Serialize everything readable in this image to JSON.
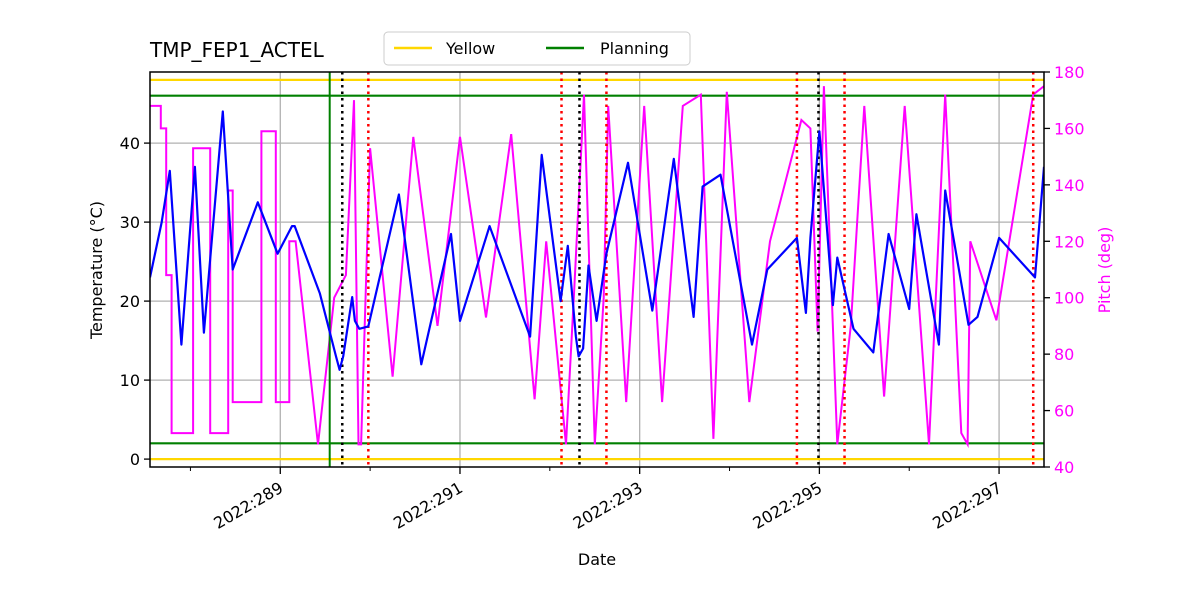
{
  "chart_data": {
    "type": "line",
    "title": "TMP_FEP1_ACTEL",
    "xlabel": "Date",
    "ylabel": "Temperature ($^\\circ$C)",
    "ylabel_display": "Temperature (°C)",
    "y2label": "Pitch (deg)",
    "xlim_days": [
      287.55,
      297.5
    ],
    "ylim": [
      -1,
      49
    ],
    "y2lim": [
      40,
      180
    ],
    "x_ticks": [
      {
        "day": 289,
        "label": "2022:289"
      },
      {
        "day": 291,
        "label": "2022:291"
      },
      {
        "day": 293,
        "label": "2022:293"
      },
      {
        "day": 295,
        "label": "2022:295"
      },
      {
        "day": 297,
        "label": "2022:297"
      }
    ],
    "x_minor_ticks": [
      288,
      290,
      292,
      294,
      296
    ],
    "y_ticks": [
      0,
      10,
      20,
      30,
      40
    ],
    "y2_ticks": [
      40,
      60,
      80,
      100,
      120,
      140,
      160,
      180
    ],
    "grid": true,
    "legend": {
      "position": "upper center (above axes)",
      "entries": [
        {
          "label": "Yellow",
          "color": "#FFD700"
        },
        {
          "label": "Planning",
          "color": "#008000"
        }
      ]
    },
    "limit_lines": [
      {
        "name": "Yellow high",
        "axis": "y",
        "value": 48,
        "color": "#FFD700"
      },
      {
        "name": "Planning high",
        "axis": "y",
        "value": 46,
        "color": "#008000"
      },
      {
        "name": "Planning low",
        "axis": "y",
        "value": 2,
        "color": "#008000"
      },
      {
        "name": "Yellow low",
        "axis": "y",
        "value": 0,
        "color": "#FFD700"
      }
    ],
    "vertical_lines": [
      {
        "day": 289.55,
        "style": "solid",
        "color": "#008000"
      },
      {
        "day": 289.69,
        "style": "dotted",
        "color": "#000000"
      },
      {
        "day": 289.98,
        "style": "dotted",
        "color": "#FF0000"
      },
      {
        "day": 292.13,
        "style": "dotted",
        "color": "#FF0000"
      },
      {
        "day": 292.33,
        "style": "dotted",
        "color": "#000000"
      },
      {
        "day": 292.63,
        "style": "dotted",
        "color": "#FF0000"
      },
      {
        "day": 294.75,
        "style": "dotted",
        "color": "#FF0000"
      },
      {
        "day": 294.99,
        "style": "dotted",
        "color": "#000000"
      },
      {
        "day": 295.28,
        "style": "dotted",
        "color": "#FF0000"
      },
      {
        "day": 297.38,
        "style": "dotted",
        "color": "#FF0000"
      }
    ],
    "series": [
      {
        "name": "TMP_FEP1_ACTEL",
        "axis": "left",
        "color": "#0000FF",
        "x_days": [
          287.55,
          287.68,
          287.77,
          287.9,
          288.05,
          288.15,
          288.36,
          288.47,
          288.75,
          288.97,
          289.13,
          289.16,
          289.44,
          289.62,
          289.66,
          289.7,
          289.8,
          289.83,
          289.88,
          289.98,
          290.32,
          290.57,
          290.9,
          291.0,
          291.33,
          291.78,
          291.91,
          292.12,
          292.2,
          292.29,
          292.32,
          292.37,
          292.43,
          292.52,
          292.63,
          292.87,
          293.14,
          293.38,
          293.6,
          293.7,
          293.9,
          294.25,
          294.42,
          294.75,
          294.85,
          294.9,
          295.0,
          295.15,
          295.2,
          295.38,
          295.6,
          295.77,
          296.0,
          296.08,
          296.33,
          296.4,
          296.66,
          296.76,
          297.0,
          297.4,
          297.5
        ],
        "values": [
          23,
          30,
          36.5,
          14.5,
          37,
          16,
          44,
          24,
          32.5,
          26,
          29.5,
          29.5,
          21,
          13,
          11.3,
          13,
          20.5,
          17.5,
          16.5,
          16.8,
          33.5,
          12,
          28.5,
          17.5,
          29.5,
          15.5,
          38.5,
          20,
          27,
          15.5,
          13,
          14,
          24.5,
          17.5,
          26,
          37.5,
          18.8,
          38,
          18,
          34.5,
          36,
          14.5,
          24,
          28,
          18.5,
          28,
          41.5,
          19.5,
          25.5,
          16.5,
          13.5,
          28.5,
          19,
          31,
          14.5,
          34,
          17,
          18,
          28,
          23,
          37
        ]
      },
      {
        "name": "Pitch",
        "axis": "right",
        "color": "#FF00FF",
        "x_days": [
          287.55,
          287.67,
          287.67,
          287.73,
          287.73,
          287.79,
          287.79,
          288.03,
          288.03,
          288.22,
          288.22,
          288.42,
          288.42,
          288.47,
          288.47,
          288.79,
          288.79,
          288.95,
          288.95,
          289.1,
          289.1,
          289.14,
          289.17,
          289.17,
          289.42,
          289.42,
          289.6,
          289.6,
          289.73,
          289.73,
          289.82,
          289.82,
          289.87,
          289.87,
          289.9,
          289.9,
          290.0,
          290.0,
          290.25,
          290.25,
          290.48,
          290.48,
          290.75,
          290.75,
          291.0,
          291.0,
          291.29,
          291.29,
          291.57,
          291.57,
          291.83,
          291.83,
          291.96,
          291.96,
          292.18,
          292.18,
          292.27,
          292.27,
          292.38,
          292.38,
          292.5,
          292.5,
          292.6,
          292.6,
          292.65,
          292.65,
          292.85,
          292.85,
          293.05,
          293.05,
          293.25,
          293.25,
          293.48,
          293.48,
          293.68,
          293.68,
          293.82,
          293.82,
          293.97,
          293.97,
          294.22,
          294.22,
          294.45,
          294.45,
          294.8,
          294.8,
          294.9,
          294.9,
          294.98,
          294.98,
          295.05,
          295.05,
          295.2,
          295.2,
          295.35,
          295.35,
          295.5,
          295.5,
          295.72,
          295.72,
          295.95,
          295.95,
          296.22,
          296.22,
          296.4,
          296.4,
          296.58,
          296.58,
          296.65,
          296.65,
          296.68,
          296.68,
          296.97,
          296.97,
          297.38,
          297.38,
          297.5
        ],
        "values": [
          168,
          168,
          160,
          160,
          108,
          108,
          52,
          52,
          153,
          153,
          52,
          52,
          138,
          138,
          63,
          63,
          159,
          159,
          63,
          63,
          120,
          120,
          120,
          120,
          48,
          48,
          100,
          100,
          108,
          108,
          170,
          170,
          48,
          48,
          48,
          48,
          153,
          153,
          72,
          72,
          157,
          157,
          90,
          90,
          157,
          157,
          93,
          93,
          158,
          158,
          64,
          64,
          120,
          120,
          48,
          48,
          102,
          102,
          172,
          172,
          48,
          48,
          100,
          100,
          168,
          168,
          63,
          63,
          168,
          168,
          63,
          63,
          168,
          168,
          172,
          172,
          50,
          50,
          173,
          173,
          63,
          63,
          120,
          120,
          163,
          163,
          160,
          160,
          88,
          88,
          175,
          175,
          48,
          48,
          90,
          90,
          168,
          168,
          65,
          65,
          168,
          168,
          48,
          48,
          172,
          172,
          52,
          52,
          48,
          48,
          120,
          120,
          92,
          92,
          172,
          172,
          175
        ]
      }
    ]
  },
  "header": {
    "title": "TMP_FEP1_ACTEL"
  },
  "legend": {
    "items": [
      {
        "label": "Yellow",
        "color": "#FFD700"
      },
      {
        "label": "Planning",
        "color": "#008000"
      }
    ]
  },
  "axes": {
    "xlabel": "Date",
    "ylabel": "Temperature (°C)",
    "y2label": "Pitch (deg)",
    "x_tick_labels": [
      "2022:289",
      "2022:291",
      "2022:293",
      "2022:295",
      "2022:297"
    ],
    "y_tick_labels": [
      "0",
      "10",
      "20",
      "30",
      "40"
    ],
    "y2_tick_labels": [
      "40",
      "60",
      "80",
      "100",
      "120",
      "140",
      "160",
      "180"
    ]
  },
  "colors": {
    "temperature": "#0000FF",
    "pitch": "#FF00FF",
    "yellow": "#FFD700",
    "planning": "#008000",
    "grid": "#B0B0B0",
    "red_marker": "#FF0000",
    "black_marker": "#000000"
  }
}
